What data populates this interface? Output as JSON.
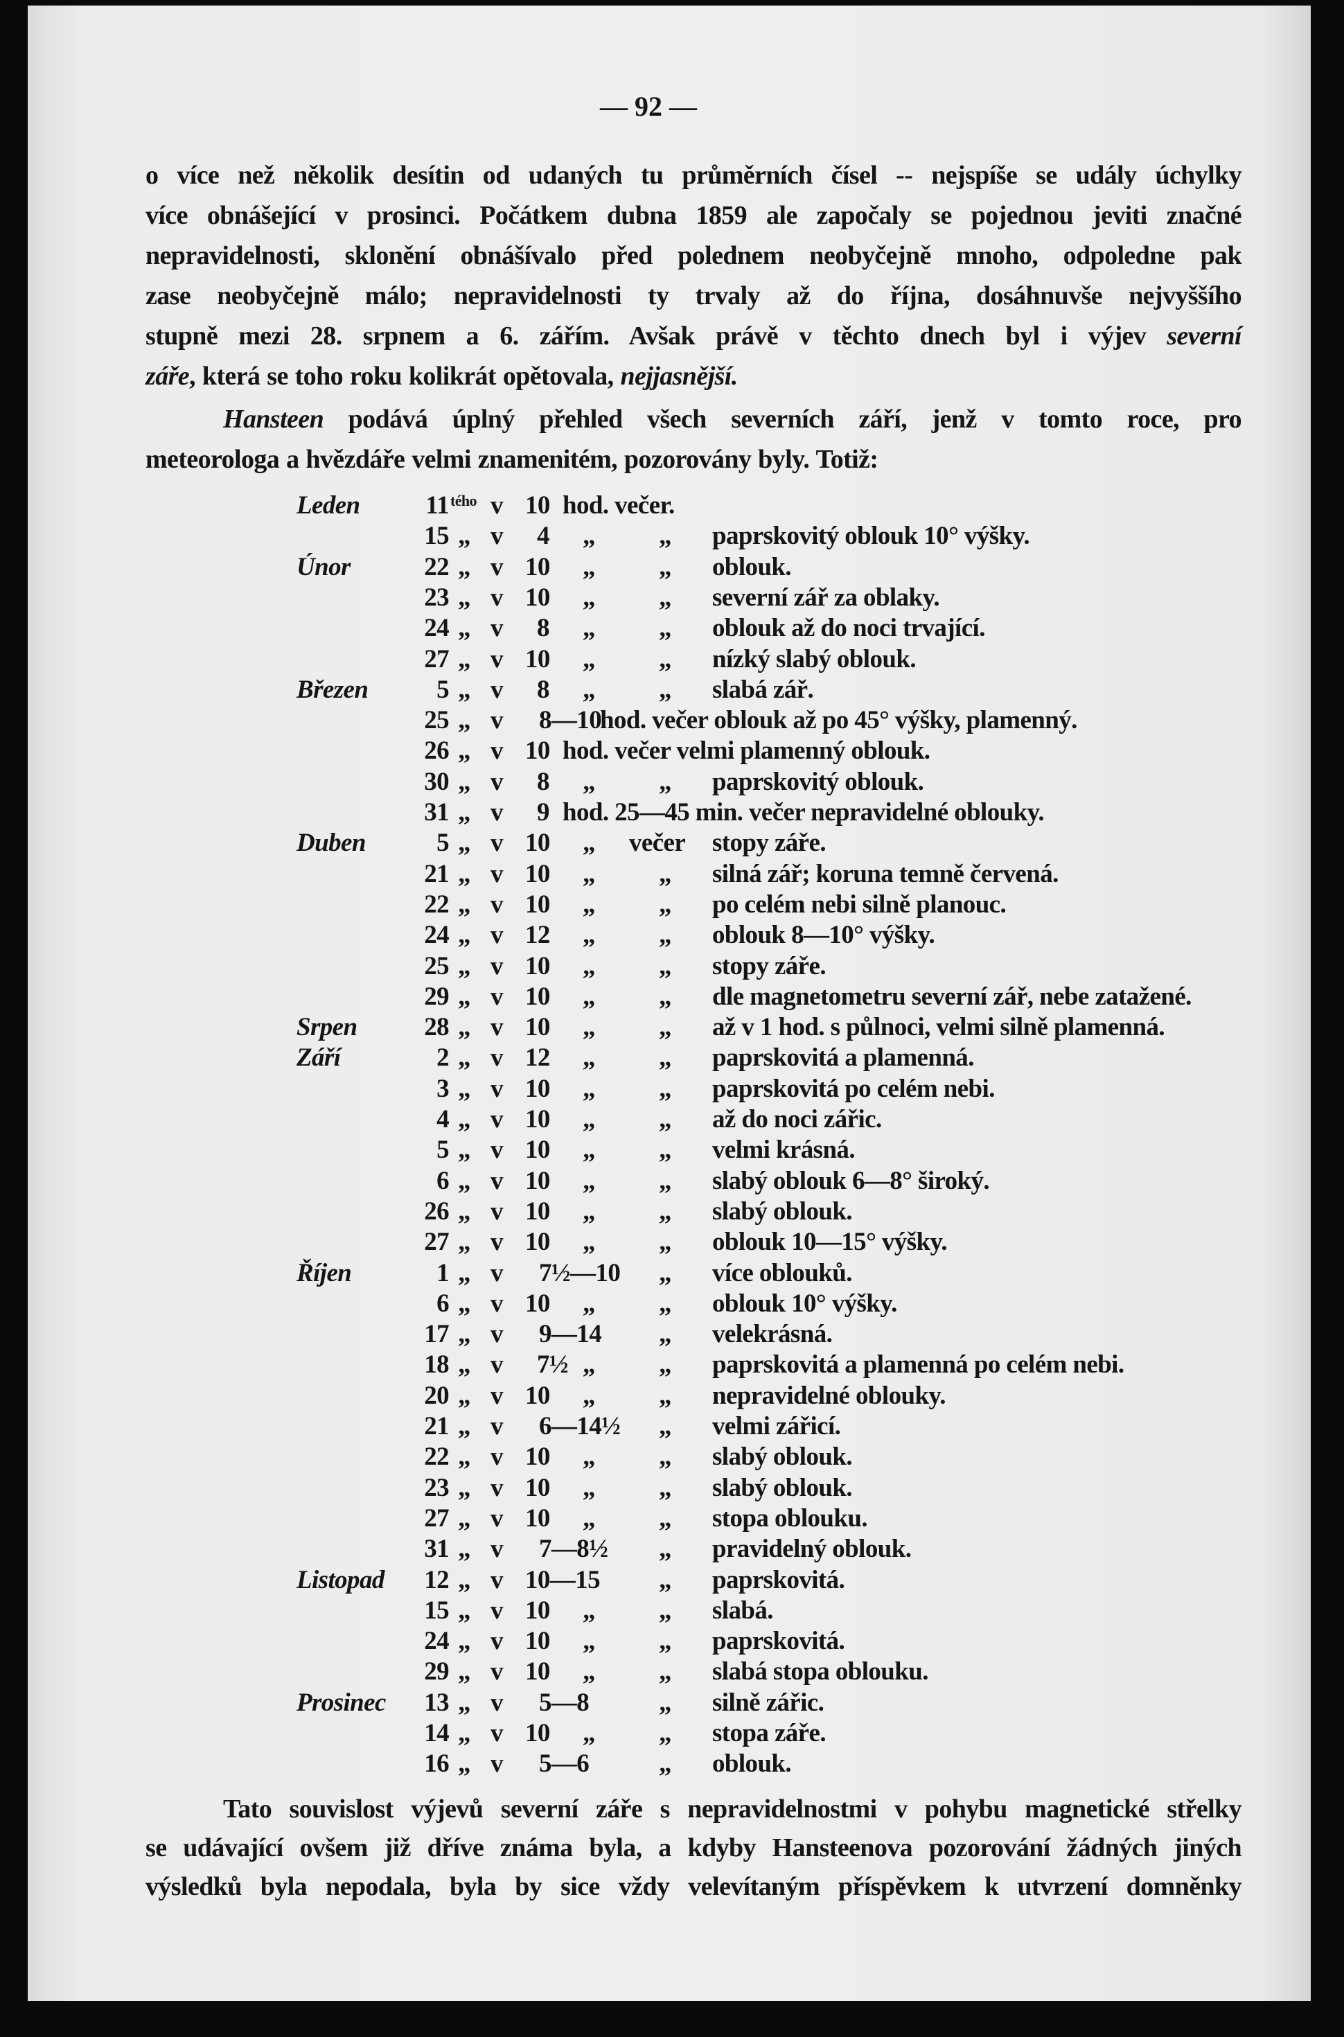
{
  "page_number": "— 92 —",
  "paragraphs": [
    {
      "indent": false,
      "lines": [
        [
          {
            "t": "o více než několik desítin od udaných tu průměrních čísel -- nejspíše se udály úchylky"
          }
        ],
        [
          {
            "t": "více obnášející v prosinci. Počátkem dubna 1859 ale započaly se pojednou jeviti značné"
          }
        ],
        [
          {
            "t": "nepravidelnosti, sklonění obnášívalo před polednem neobyčejně mnoho, odpoledne pak"
          }
        ],
        [
          {
            "t": "zase neobyčejně málo; nepravidelnosti ty trvaly až do října, dosáhnuvše nejvyššího"
          }
        ],
        [
          {
            "t": "stupně mezi 28. srpnem a 6. zářím. Avšak právě v těchto dnech byl i výjev "
          },
          {
            "t": "severní",
            "i": true
          }
        ],
        [
          {
            "t": "záře",
            "i": true
          },
          {
            "t": ", která se toho roku kolikrát opětovala, "
          },
          {
            "t": "nejjasnější.",
            "i": true
          }
        ]
      ]
    },
    {
      "indent": true,
      "lines": [
        [
          {
            "t": "Hansteen",
            "i": true
          },
          {
            "t": " podává úplný přehled všech severních září, jenž v tomto roce, pro"
          }
        ],
        [
          {
            "t": "meteorologa a hvězdáře velmi znamenitém, pozorovány byly. Totiž:"
          }
        ]
      ]
    }
  ],
  "observations": [
    {
      "m": "Leden",
      "d": "11",
      "s": "tého",
      "q1": "",
      "v": "v",
      "t": "10",
      "rest": "hod. večer."
    },
    {
      "m": "",
      "d": "15",
      "q1": "„",
      "v": "v",
      "t": "4",
      "q2": "„",
      "q3": "„",
      "desc": "paprskovitý oblouk 10° výšky."
    },
    {
      "m": "Únor",
      "d": "22",
      "q1": "„",
      "v": "v",
      "t": "10",
      "q2": "„",
      "q3": "„",
      "desc": "oblouk."
    },
    {
      "m": "",
      "d": "23",
      "q1": "„",
      "v": "v",
      "t": "10",
      "q2": "„",
      "q3": "„",
      "desc": "severní zář za oblaky."
    },
    {
      "m": "",
      "d": "24",
      "q1": "„",
      "v": "v",
      "t": "8",
      "q2": "„",
      "q3": "„",
      "desc": "oblouk až do noci trvající."
    },
    {
      "m": "",
      "d": "27",
      "q1": "„",
      "v": "v",
      "t": "10",
      "q2": "„",
      "q3": "„",
      "desc": "nízký slabý oblouk."
    },
    {
      "m": "Březen",
      "d": "5",
      "q1": "„",
      "v": "v",
      "t": "8",
      "q2": "„",
      "q3": "„",
      "desc": "slabá zář."
    },
    {
      "m": "",
      "d": "25",
      "q1": "„",
      "v": "v",
      "t": "8—10",
      "rest": "hod. večer oblouk až po 45° výšky, plamenný."
    },
    {
      "m": "",
      "d": "26",
      "q1": "„",
      "v": "v",
      "t": "10",
      "rest": "hod. večer velmi plamenný oblouk."
    },
    {
      "m": "",
      "d": "30",
      "q1": "„",
      "v": "v",
      "t": "8",
      "q2": "„",
      "q3": "„",
      "desc": "paprskovitý oblouk."
    },
    {
      "m": "",
      "d": "31",
      "q1": "„",
      "v": "v",
      "t": "9",
      "rest": "hod. 25—45 min. večer nepravidelné oblouky."
    },
    {
      "m": "Duben",
      "d": "5",
      "q1": "„",
      "v": "v",
      "t": "10",
      "q2": "„",
      "q3": "večer",
      "desc": "stopy záře."
    },
    {
      "m": "",
      "d": "21",
      "q1": "„",
      "v": "v",
      "t": "10",
      "q2": "„",
      "q3": "„",
      "desc": "silná zář; koruna temně červená."
    },
    {
      "m": "",
      "d": "22",
      "q1": "„",
      "v": "v",
      "t": "10",
      "q2": "„",
      "q3": "„",
      "desc": "po celém nebi silně planouc."
    },
    {
      "m": "",
      "d": "24",
      "q1": "„",
      "v": "v",
      "t": "12",
      "q2": "„",
      "q3": "„",
      "desc": "oblouk 8—10° výšky."
    },
    {
      "m": "",
      "d": "25",
      "q1": "„",
      "v": "v",
      "t": "10",
      "q2": "„",
      "q3": "„",
      "desc": "stopy záře."
    },
    {
      "m": "",
      "d": "29",
      "q1": "„",
      "v": "v",
      "t": "10",
      "q2": "„",
      "q3": "„",
      "desc": "dle magnetometru severní zář, nebe zatažené."
    },
    {
      "m": "Srpen",
      "d": "28",
      "q1": "„",
      "v": "v",
      "t": "10",
      "q2": "„",
      "q3": "„",
      "desc": "až v 1 hod. s půlnoci, velmi silně plamenná."
    },
    {
      "m": "Září",
      "d": "2",
      "q1": "„",
      "v": "v",
      "t": "12",
      "q2": "„",
      "q3": "„",
      "desc": "paprskovitá a plamenná."
    },
    {
      "m": "",
      "d": "3",
      "q1": "„",
      "v": "v",
      "t": "10",
      "q2": "„",
      "q3": "„",
      "desc": "paprskovitá po celém nebi."
    },
    {
      "m": "",
      "d": "4",
      "q1": "„",
      "v": "v",
      "t": "10",
      "q2": "„",
      "q3": "„",
      "desc": "až do noci zářic."
    },
    {
      "m": "",
      "d": "5",
      "q1": "„",
      "v": "v",
      "t": "10",
      "q2": "„",
      "q3": "„",
      "desc": "velmi krásná."
    },
    {
      "m": "",
      "d": "6",
      "q1": "„",
      "v": "v",
      "t": "10",
      "q2": "„",
      "q3": "„",
      "desc": "slabý oblouk 6—8° široký."
    },
    {
      "m": "",
      "d": "26",
      "q1": "„",
      "v": "v",
      "t": "10",
      "q2": "„",
      "q3": "„",
      "desc": "slabý oblouk."
    },
    {
      "m": "",
      "d": "27",
      "q1": "„",
      "v": "v",
      "t": "10",
      "q2": "„",
      "q3": "„",
      "desc": "oblouk 10—15° výšky."
    },
    {
      "m": "Říjen",
      "d": "1",
      "q1": "„",
      "v": "v",
      "t": "7½—10",
      "q2": "",
      "q3": "„",
      "desc": "více oblouků."
    },
    {
      "m": "",
      "d": "6",
      "q1": "„",
      "v": "v",
      "t": "10",
      "q2": "„",
      "q3": "„",
      "desc": "oblouk 10° výšky."
    },
    {
      "m": "",
      "d": "17",
      "q1": "„",
      "v": "v",
      "t": "9—14",
      "q2": "",
      "q3": "„",
      "desc": "velekrásná."
    },
    {
      "m": "",
      "d": "18",
      "q1": "„",
      "v": "v",
      "t": "7½",
      "q2": "„",
      "q3": "„",
      "desc": "paprskovitá a plamenná po celém nebi."
    },
    {
      "m": "",
      "d": "20",
      "q1": "„",
      "v": "v",
      "t": "10",
      "q2": "„",
      "q3": "„",
      "desc": "nepravidelné oblouky."
    },
    {
      "m": "",
      "d": "21",
      "q1": "„",
      "v": "v",
      "t": "6—14½",
      "q2": "",
      "q3": "„",
      "desc": "velmi zářicí."
    },
    {
      "m": "",
      "d": "22",
      "q1": "„",
      "v": "v",
      "t": "10",
      "q2": "„",
      "q3": "„",
      "desc": "slabý oblouk."
    },
    {
      "m": "",
      "d": "23",
      "q1": "„",
      "v": "v",
      "t": "10",
      "q2": "„",
      "q3": "„",
      "desc": "slabý oblouk."
    },
    {
      "m": "",
      "d": "27",
      "q1": "„",
      "v": "v",
      "t": "10",
      "q2": "„",
      "q3": "„",
      "desc": "stopa oblouku."
    },
    {
      "m": "",
      "d": "31",
      "q1": "„",
      "v": "v",
      "t": "7—8½",
      "q2": "",
      "q3": "„",
      "desc": "pravidelný oblouk."
    },
    {
      "m": "Listopad",
      "d": "12",
      "q1": "„",
      "v": "v",
      "t": "10—15",
      "q2": "",
      "q3": "„",
      "desc": "paprskovitá."
    },
    {
      "m": "",
      "d": "15",
      "q1": "„",
      "v": "v",
      "t": "10",
      "q2": "„",
      "q3": "„",
      "desc": "slabá."
    },
    {
      "m": "",
      "d": "24",
      "q1": "„",
      "v": "v",
      "t": "10",
      "q2": "„",
      "q3": "„",
      "desc": "paprskovitá."
    },
    {
      "m": "",
      "d": "29",
      "q1": "„",
      "v": "v",
      "t": "10",
      "q2": "„",
      "q3": "„",
      "desc": "slabá stopa oblouku."
    },
    {
      "m": "Prosinec",
      "d": "13",
      "q1": "„",
      "v": "v",
      "t": "5—8",
      "q2": "",
      "q3": "„",
      "desc": "silně zářic."
    },
    {
      "m": "",
      "d": "14",
      "q1": "„",
      "v": "v",
      "t": "10",
      "q2": "„",
      "q3": "„",
      "desc": "stopa záře."
    },
    {
      "m": "",
      "d": "16",
      "q1": "„",
      "v": "v",
      "t": "5—6",
      "q2": "",
      "q3": "„",
      "desc": "oblouk."
    }
  ],
  "closing_paragraph": {
    "indent": true,
    "justify_last": true,
    "lines": [
      [
        {
          "t": "Tato souvislost výjevů severní záře s nepravidelnostmi v pohybu magnetické střelky"
        }
      ],
      [
        {
          "t": "se udávající ovšem již dříve známa byla, a kdyby Hansteenova pozorování žádných jiných"
        }
      ],
      [
        {
          "t": "výsledků byla nepodala, byla by sice vždy velevítaným příspěvkem k utvrzení domněnky"
        }
      ]
    ]
  }
}
